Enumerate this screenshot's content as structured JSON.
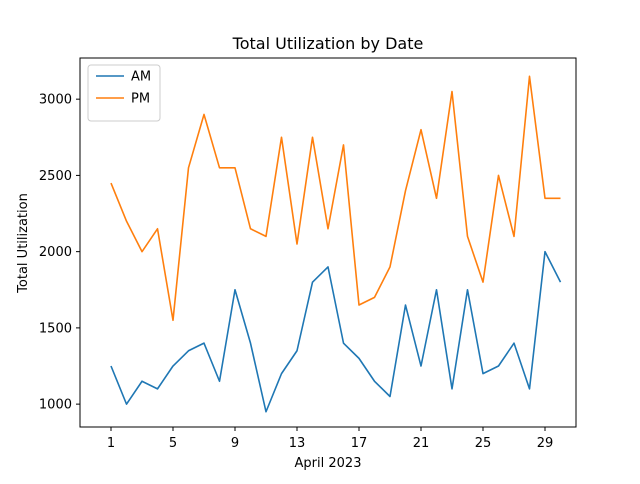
{
  "chart_data": {
    "type": "line",
    "title": "Total Utilization by Date",
    "xlabel": "April 2023",
    "ylabel": "Total Utilization",
    "x": [
      "2023-04-01",
      "2023-04-02",
      "2023-04-03",
      "2023-04-04",
      "2023-04-05",
      "2023-04-06",
      "2023-04-07",
      "2023-04-08",
      "2023-04-09",
      "2023-04-10",
      "2023-04-11",
      "2023-04-12",
      "2023-04-13",
      "2023-04-14",
      "2023-04-15",
      "2023-04-16",
      "2023-04-17",
      "2023-04-18",
      "2023-04-19",
      "2023-04-20",
      "2023-04-21",
      "2023-04-22",
      "2023-04-23",
      "2023-04-24",
      "2023-04-25",
      "2023-04-26",
      "2023-04-27",
      "2023-04-28",
      "2023-04-29",
      "2023-04-30"
    ],
    "xlim": [
      "2023-03-30",
      "2023-05-01"
    ],
    "xtick_labels": [
      "1",
      "5",
      "9",
      "13",
      "17",
      "21",
      "25",
      "29"
    ],
    "ylim": [
      850,
      3270
    ],
    "ytick_values": [
      1000,
      1500,
      2000,
      2500,
      3000
    ],
    "ytick_labels": [
      "1000",
      "1500",
      "2000",
      "2500",
      "3000"
    ],
    "grid": false,
    "legend_position": "top-left",
    "series": [
      {
        "name": "AM",
        "color": "#1f77b4",
        "values": [
          1250,
          1000,
          1150,
          1100,
          1250,
          1350,
          1400,
          1150,
          1750,
          1400,
          950,
          1200,
          1350,
          1800,
          1900,
          1400,
          1300,
          1150,
          1050,
          1650,
          1250,
          1750,
          1100,
          1750,
          1200,
          1250,
          1400,
          1100,
          2000,
          1800
        ]
      },
      {
        "name": "PM",
        "color": "#ff7f0e",
        "values": [
          2450,
          2200,
          2000,
          2150,
          1550,
          2550,
          2900,
          2550,
          2550,
          2150,
          2100,
          2750,
          2050,
          2750,
          2150,
          2700,
          1650,
          1700,
          1900,
          2400,
          2800,
          2350,
          3050,
          2100,
          1800,
          2500,
          2100,
          3150,
          2350,
          2350
        ]
      }
    ]
  }
}
